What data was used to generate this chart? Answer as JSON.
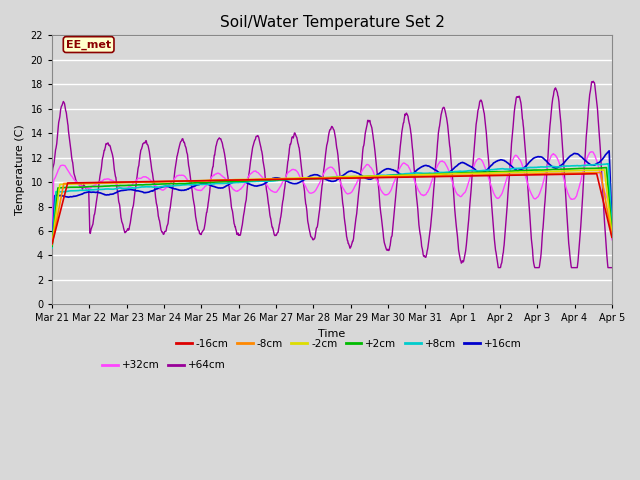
{
  "title": "Soil/Water Temperature Set 2",
  "xlabel": "Time",
  "ylabel": "Temperature (C)",
  "ylim": [
    0,
    22
  ],
  "yticks": [
    0,
    2,
    4,
    6,
    8,
    10,
    12,
    14,
    16,
    18,
    20,
    22
  ],
  "background_color": "#d8d8d8",
  "plot_bg_color": "#d8d8d8",
  "grid_color": "#ffffff",
  "annotation_text": "EE_met",
  "annotation_bg": "#ffffcc",
  "annotation_border": "#8b0000",
  "annotation_text_color": "#8b0000",
  "series_colors": {
    "-16cm": "#dd0000",
    "-8cm": "#ff8800",
    "-2cm": "#dddd00",
    "+2cm": "#00bb00",
    "+8cm": "#00cccc",
    "+16cm": "#0000cc",
    "+32cm": "#ff44ff",
    "+64cm": "#990099"
  },
  "legend_labels": [
    "-16cm",
    "-8cm",
    "-2cm",
    "+2cm",
    "+8cm",
    "+16cm",
    "+32cm",
    "+64cm"
  ],
  "x_tick_labels": [
    "Mar 21",
    "Mar 22",
    "Mar 23",
    "Mar 24",
    "Mar 25",
    "Mar 26",
    "Mar 27",
    "Mar 28",
    "Mar 29",
    "Mar 30",
    "Mar 31",
    "Apr 1",
    "Apr 2",
    "Apr 3",
    "Apr 4",
    "Apr 5"
  ],
  "n_points": 1440,
  "n_days": 15
}
